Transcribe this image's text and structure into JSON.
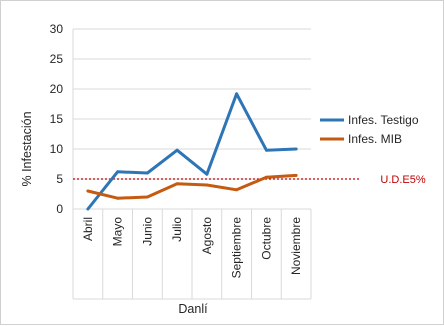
{
  "chart_data": {
    "type": "line",
    "title": "",
    "xlabel": "Danlí",
    "ylabel": "% Infestación",
    "ylim": [
      0,
      30
    ],
    "yticks": [
      0,
      5,
      10,
      15,
      20,
      25,
      30
    ],
    "grid": true,
    "legend_position": "right",
    "categories": [
      "Abril",
      "Mayo",
      "Junio",
      "Julio",
      "Agosto",
      "Septiembre",
      "Octubre",
      "Noviembre"
    ],
    "series": [
      {
        "name": "Infes. Testigo",
        "color": "#2e75b6",
        "values": [
          0,
          6.2,
          6.0,
          9.8,
          5.8,
          19.2,
          9.8,
          10.0
        ]
      },
      {
        "name": "Infes. MIB",
        "color": "#c55a11",
        "values": [
          3.0,
          1.8,
          2.0,
          4.2,
          4.0,
          3.2,
          5.3,
          5.6
        ]
      }
    ],
    "reference_line": {
      "label": "U.D.E5%",
      "value": 5,
      "color": "#c00000"
    }
  }
}
